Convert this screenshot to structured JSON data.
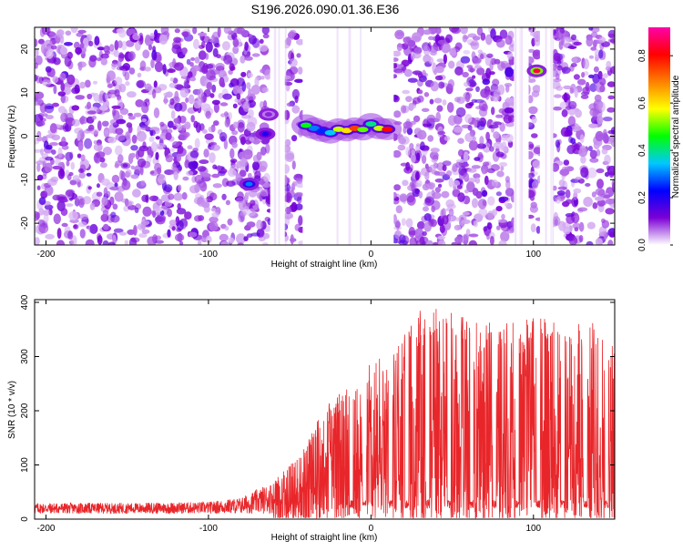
{
  "figure_title": "S196.2026.090.01.36.E36",
  "chart_data": [
    {
      "type": "heatmap",
      "title": "S196.2026.090.01.36.E36",
      "xlabel": "Height of straight line (km)",
      "ylabel": "Frequency (Hz)",
      "xlim": [
        -207,
        150
      ],
      "ylim": [
        -25,
        25
      ],
      "xticks": [
        -200,
        -100,
        0,
        100
      ],
      "xtick_labels": [
        "-200",
        "-100",
        "0",
        "100"
      ],
      "yticks": [
        -20,
        -10,
        0,
        10,
        20
      ],
      "ytick_labels": [
        "-20",
        "-10",
        "0",
        "10",
        "20"
      ],
      "colorbar": {
        "label": "Normalized spectral amplitude",
        "range": [
          0,
          0.92
        ],
        "ticks": [
          0.0,
          0.2,
          0.4,
          0.6,
          0.8
        ],
        "tick_labels": [
          "0.0",
          "0.2",
          "0.4",
          "0.6",
          "0.8"
        ],
        "colors": [
          "#ffffff",
          "#7b00d6",
          "#0000ff",
          "#00c8ff",
          "#00ff00",
          "#ffff00",
          "#ff8000",
          "#ff0000",
          "#ff00aa"
        ]
      },
      "blank_bands_km": [
        [
          -62,
          -53
        ],
        [
          -42,
          14
        ],
        [
          88,
          97
        ],
        [
          104,
          112
        ]
      ],
      "signal_ridge": {
        "x_km": [
          -40,
          -35,
          -30,
          -25,
          -20,
          -15,
          -10,
          -5,
          0,
          5,
          10
        ],
        "freq_hz": [
          2.5,
          1.8,
          1.2,
          0.8,
          1.6,
          1.3,
          1.8,
          1.5,
          2.8,
          1.8,
          1.6
        ],
        "amplitude": [
          0.45,
          0.3,
          0.25,
          0.35,
          0.55,
          0.6,
          0.75,
          0.5,
          0.4,
          0.55,
          0.8
        ]
      },
      "features": [
        {
          "x_km": 102,
          "freq_hz": 15,
          "amplitude": 0.85
        },
        {
          "x_km": -75,
          "freq_hz": -11,
          "amplitude": 0.3
        },
        {
          "x_km": -65,
          "freq_hz": 0.5,
          "amplitude": 0.2
        },
        {
          "x_km": -63,
          "freq_hz": 5,
          "amplitude": 0.1
        }
      ]
    },
    {
      "type": "line",
      "xlabel": "Height of straight line (km)",
      "ylabel": "SNR (10 * v/v)",
      "xlim": [
        -207,
        150
      ],
      "ylim": [
        0,
        405
      ],
      "xticks": [
        -200,
        -100,
        0,
        100
      ],
      "xtick_labels": [
        "-200",
        "-100",
        "0",
        "100"
      ],
      "yticks": [
        0,
        100,
        200,
        300,
        400
      ],
      "ytick_labels": [
        "0",
        "100",
        "200",
        "300",
        "400"
      ],
      "series": [
        {
          "name": "SNR",
          "color": "#e8262a",
          "envelope_x": [
            -207,
            -150,
            -100,
            -80,
            -60,
            -50,
            -40,
            -30,
            -20,
            -10,
            0,
            10,
            20,
            30,
            40,
            60,
            80,
            100,
            120,
            140,
            150
          ],
          "envelope_y": [
            30,
            30,
            32,
            40,
            70,
            100,
            140,
            200,
            240,
            250,
            290,
            320,
            340,
            400,
            390,
            370,
            360,
            380,
            360,
            370,
            330
          ],
          "baseline_y": [
            20,
            20,
            22,
            25,
            30,
            40,
            60,
            90,
            130,
            160,
            200,
            220,
            240,
            250,
            250,
            240,
            230,
            230,
            230,
            230,
            220
          ],
          "dip_x_km": [
            -12,
            -4,
            12,
            22,
            35,
            48,
            62,
            76,
            90,
            103,
            118,
            132,
            145
          ],
          "dip_value": 20
        }
      ]
    }
  ]
}
